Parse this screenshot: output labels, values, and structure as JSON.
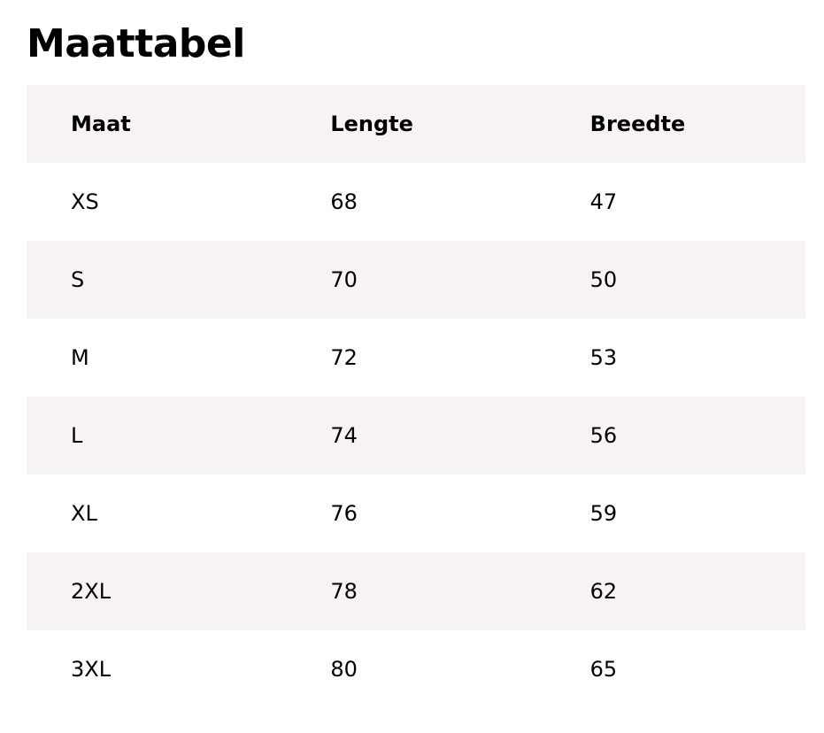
{
  "title": "Maattabel",
  "colors": {
    "stripe": "#f8f3f3",
    "text": "#000000"
  },
  "table": {
    "headers": [
      "Maat",
      "Lengte",
      "Breedte"
    ],
    "rows": [
      [
        "XS",
        "68",
        "47"
      ],
      [
        "S",
        "70",
        "50"
      ],
      [
        "M",
        "72",
        "53"
      ],
      [
        "L",
        "74",
        "56"
      ],
      [
        "XL",
        "76",
        "59"
      ],
      [
        "2XL",
        "78",
        "62"
      ],
      [
        "3XL",
        "80",
        "65"
      ]
    ]
  }
}
